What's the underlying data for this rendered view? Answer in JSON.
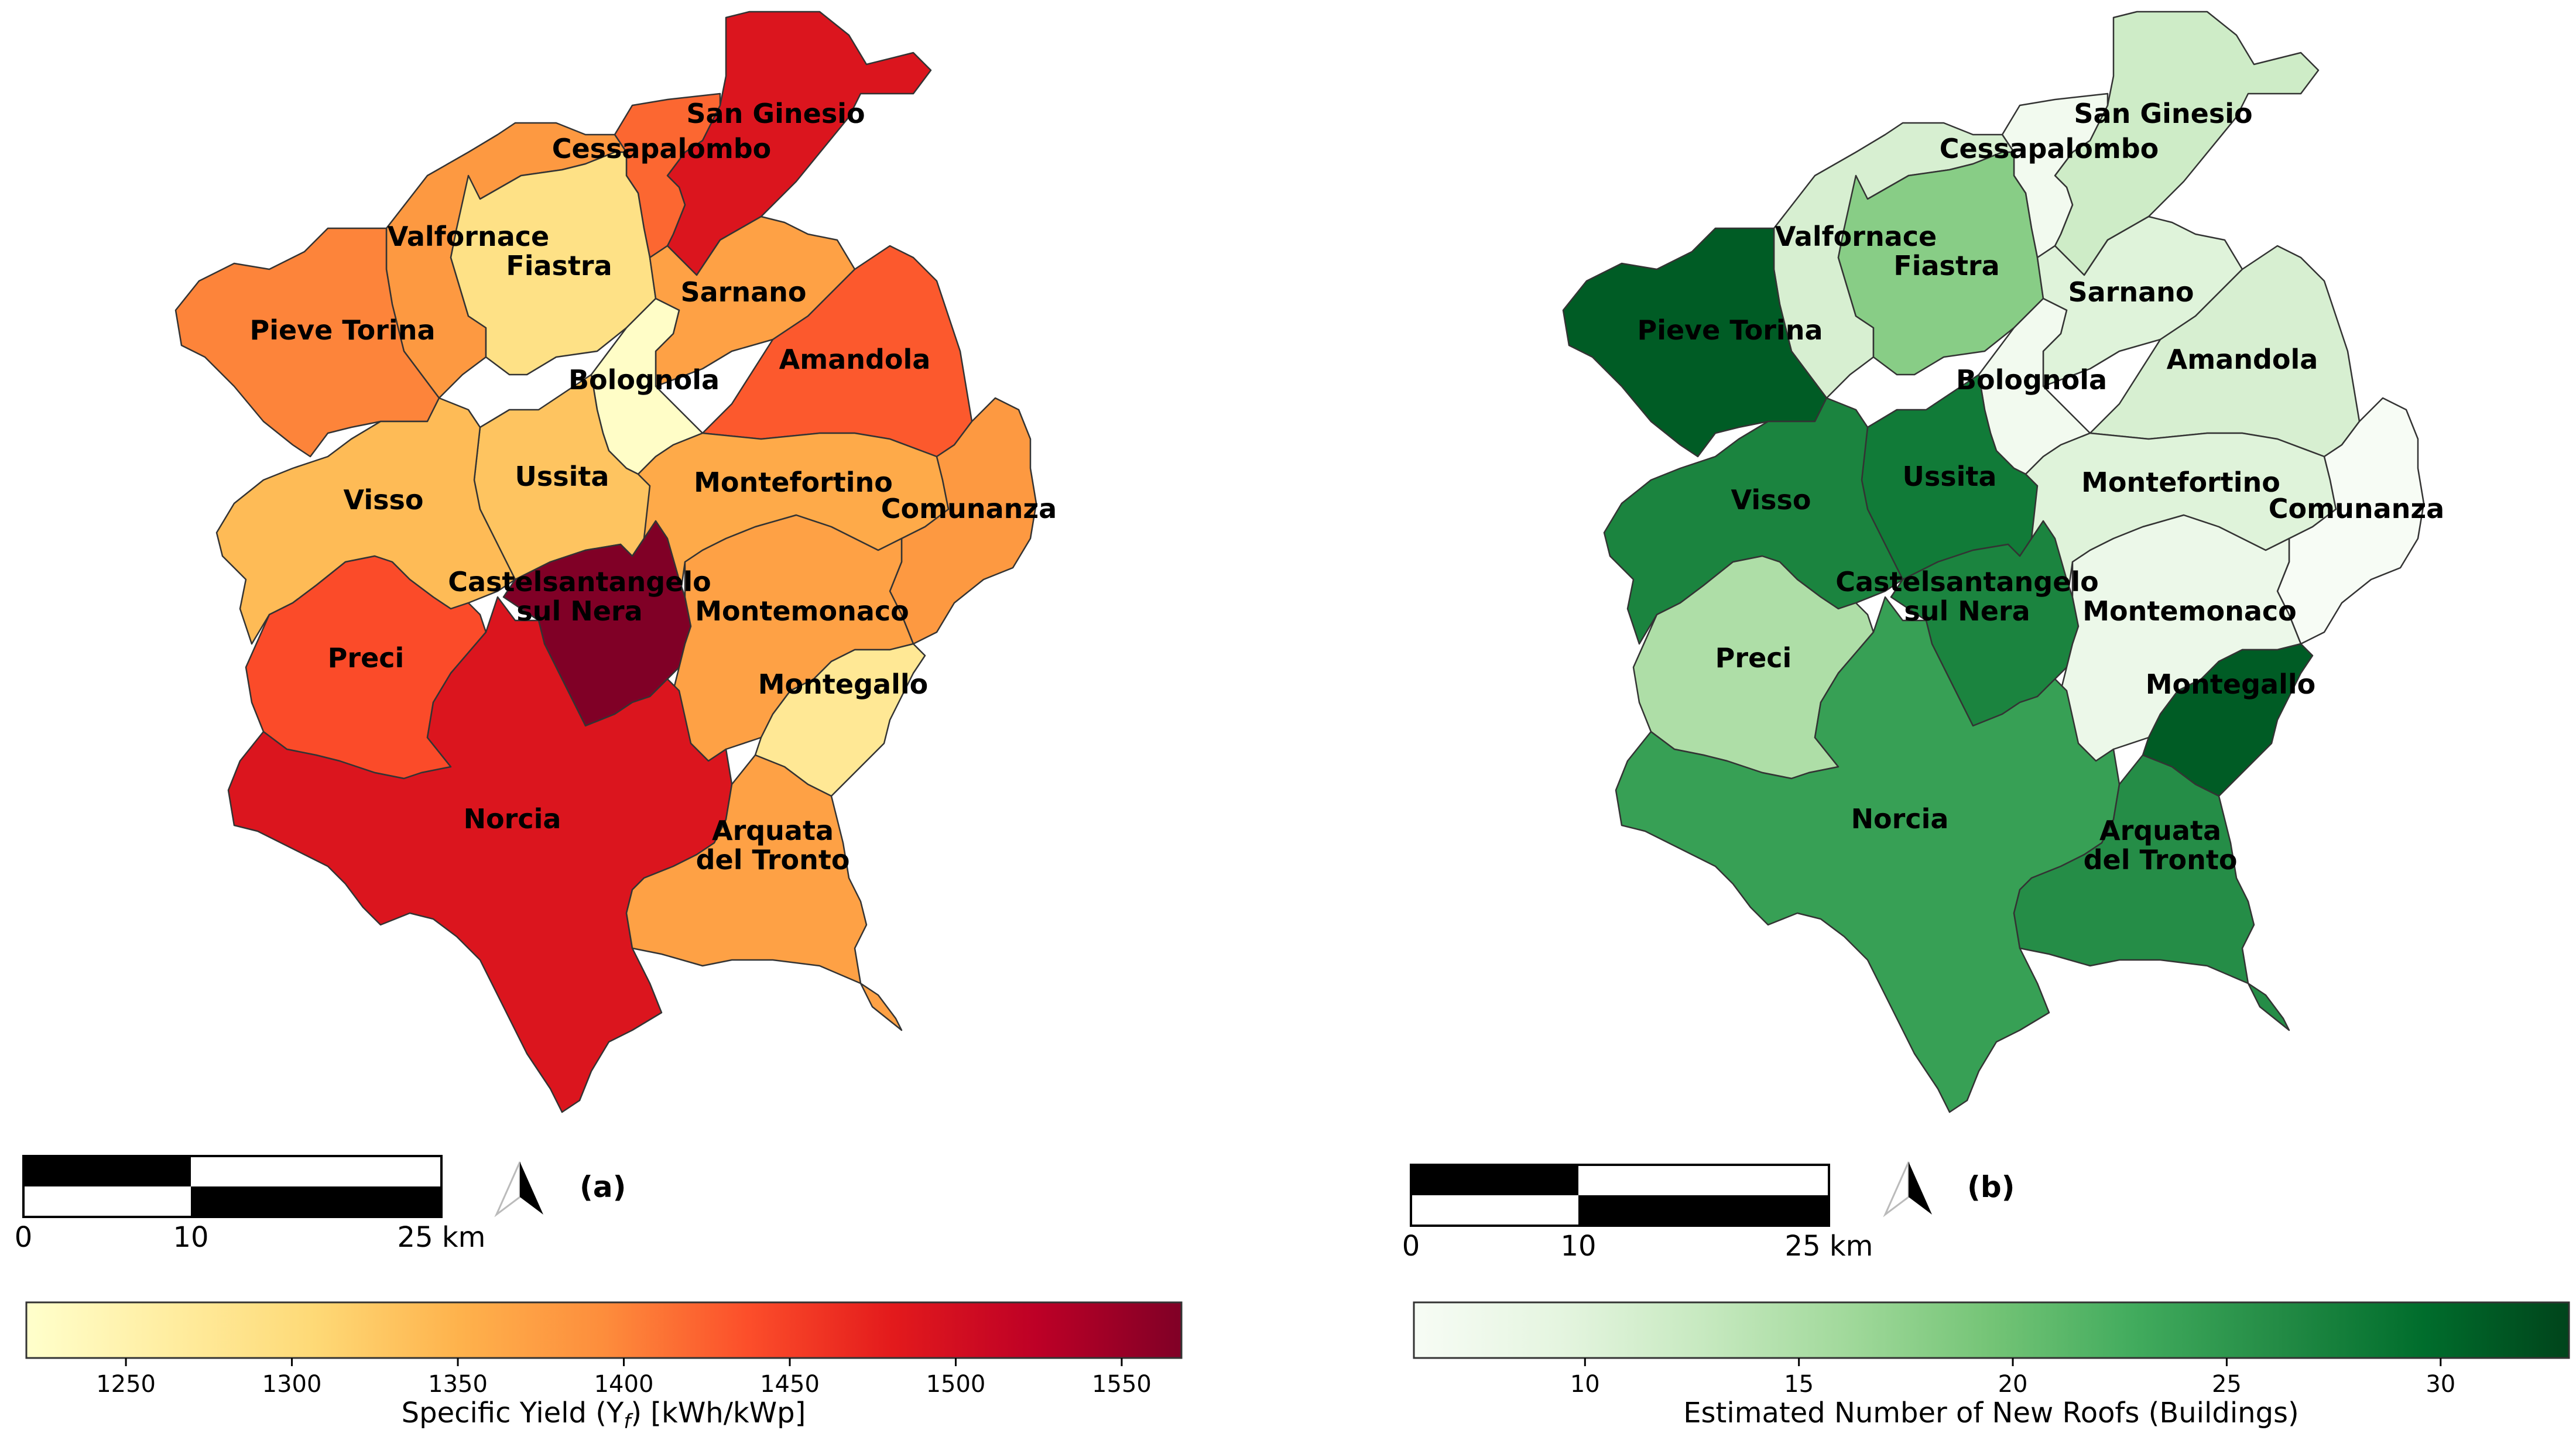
{
  "municipalities": [
    "San Ginesio",
    "Cessapalombo",
    "Valfornace",
    "Fiastra",
    "Sarnano",
    "Pieve Torina",
    "Amandola",
    "Bolognola",
    "Ussita",
    "Montefortino",
    "Comunanza",
    "Visso",
    "Castelsantangelo",
    "Montemonaco",
    "Preci",
    "Montegallo",
    "Norcia",
    "Arquata"
  ],
  "label_lines": {
    "San Ginesio": [
      "San Ginesio"
    ],
    "Cessapalombo": [
      "Cessapalombo"
    ],
    "Valfornace": [
      "Valfornace"
    ],
    "Fiastra": [
      "Fiastra"
    ],
    "Sarnano": [
      "Sarnano"
    ],
    "Pieve Torina": [
      "Pieve Torina"
    ],
    "Amandola": [
      "Amandola"
    ],
    "Bolognola": [
      "Bolognola"
    ],
    "Ussita": [
      "Ussita"
    ],
    "Montefortino": [
      "Montefortino"
    ],
    "Comunanza": [
      "Comunanza"
    ],
    "Visso": [
      "Visso"
    ],
    "Castelsantangelo": [
      "Castelsantangelo",
      "sul Nera"
    ],
    "Montemonaco": [
      "Montemonaco"
    ],
    "Preci": [
      "Preci"
    ],
    "Montegallo": [
      "Montegallo"
    ],
    "Norcia": [
      "Norcia"
    ],
    "Arquata": [
      "Arquata",
      "del Tronto"
    ]
  },
  "maps": [
    {
      "panel_label": "(a)",
      "colorbar_title": "Specific Yield (Y",
      "colorbar_title_sub": "f",
      "colorbar_title_tail": ") [kWh/kWp]",
      "colormap": "YlOrRd",
      "colorbar_range": [
        1220,
        1568
      ],
      "colorbar_ticks": [
        "1250",
        "1300",
        "1350",
        "1400",
        "1450",
        "1500",
        "1550"
      ],
      "values": {
        "San Ginesio": 1490,
        "Cessapalombo": 1420,
        "Valfornace": 1380,
        "Fiastra": 1290,
        "Sarnano": 1370,
        "Pieve Torina": 1400,
        "Amandola": 1430,
        "Bolognola": 1225,
        "Ussita": 1330,
        "Montefortino": 1360,
        "Comunanza": 1380,
        "Visso": 1340,
        "Castelsantangelo": 1568,
        "Montemonaco": 1370,
        "Preci": 1440,
        "Montegallo": 1275,
        "Norcia": 1490,
        "Arquata": 1370
      }
    },
    {
      "panel_label": "(b)",
      "colorbar_title": "Estimated Number of New Roofs (Buildings)",
      "colorbar_title_sub": "",
      "colorbar_title_tail": "",
      "colormap": "Greens",
      "colorbar_range": [
        6,
        33
      ],
      "colorbar_ticks": [
        "10",
        "15",
        "20",
        "25",
        "30"
      ],
      "values": {
        "San Ginesio": 12,
        "Cessapalombo": 7,
        "Valfornace": 11,
        "Fiastra": 18,
        "Sarnano": 10,
        "Pieve Torina": 31,
        "Amandola": 11,
        "Bolognola": 7,
        "Ussita": 28,
        "Montefortino": 10,
        "Comunanza": 6,
        "Visso": 27,
        "Castelsantangelo": 27,
        "Montemonaco": 8,
        "Preci": 15,
        "Montegallo": 31,
        "Norcia": 24,
        "Arquata": 26
      }
    }
  ],
  "scale_bar": {
    "ticks": [
      "0",
      "10",
      "25 km"
    ]
  },
  "colors": {
    "border": "#333333",
    "north_arrow": "#000000"
  }
}
